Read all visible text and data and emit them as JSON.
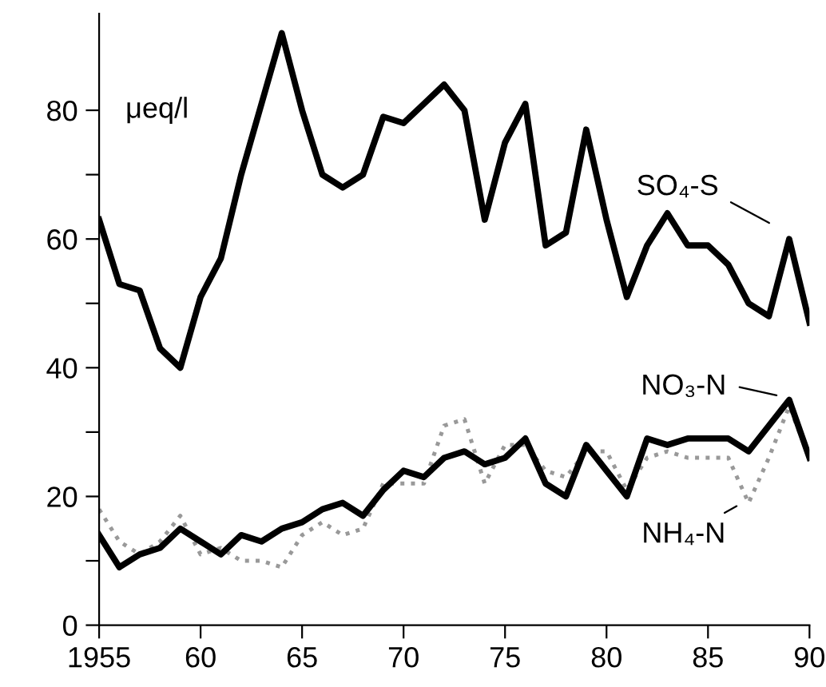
{
  "chart_data": {
    "type": "line",
    "ylabel": "μeq/l",
    "x": [
      1955,
      1956,
      1957,
      1958,
      1959,
      1960,
      1961,
      1962,
      1963,
      1964,
      1965,
      1966,
      1967,
      1968,
      1969,
      1970,
      1971,
      1972,
      1973,
      1974,
      1975,
      1976,
      1977,
      1978,
      1979,
      1980,
      1981,
      1982,
      1983,
      1984,
      1985,
      1986,
      1987,
      1988,
      1989,
      1990
    ],
    "series": [
      {
        "name": "SO₄-S",
        "color": "#000000",
        "line_style": "solid",
        "values": [
          63,
          53,
          52,
          43,
          40,
          51,
          57,
          70,
          81,
          92,
          80,
          70,
          68,
          70,
          79,
          78,
          81,
          84,
          80,
          63,
          75,
          81,
          59,
          61,
          77,
          63,
          51,
          59,
          64,
          59,
          59,
          56,
          50,
          48,
          60,
          47
        ]
      },
      {
        "name": "NO₃-N",
        "color": "#000000",
        "line_style": "solid",
        "values": [
          14,
          9,
          11,
          12,
          15,
          13,
          11,
          14,
          13,
          15,
          16,
          18,
          19,
          17,
          21,
          24,
          23,
          26,
          27,
          25,
          26,
          29,
          22,
          20,
          28,
          24,
          20,
          29,
          28,
          29,
          29,
          29,
          27,
          31,
          35,
          26
        ]
      },
      {
        "name": "NH₄-N",
        "color": "#999999",
        "line_style": "dotted",
        "values": [
          18,
          13,
          11,
          13,
          17,
          11,
          12,
          10,
          10,
          9,
          14,
          16,
          14,
          15,
          22,
          22,
          22,
          31,
          32,
          22,
          28,
          28,
          24,
          23,
          27,
          27,
          21,
          26,
          27,
          26,
          26,
          26,
          19,
          26,
          34,
          26
        ]
      }
    ],
    "xlim": [
      1955,
      1990
    ],
    "ylim": [
      0,
      95
    ],
    "xticks": [
      1955,
      {
        "value": 1960,
        "label": "60"
      },
      {
        "value": 1965,
        "label": "65"
      },
      {
        "value": 1970,
        "label": "70"
      },
      {
        "value": 1975,
        "label": "75"
      },
      {
        "value": 1980,
        "label": "80"
      },
      {
        "value": 1985,
        "label": "85"
      },
      {
        "value": 1990,
        "label": "90"
      }
    ],
    "yticks": [
      0,
      {
        "value": 10,
        "label": null
      },
      20,
      {
        "value": 30,
        "label": null
      },
      40,
      {
        "value": 50,
        "label": null
      },
      60,
      {
        "value": 70,
        "label": null
      },
      80
    ],
    "grid": false,
    "marker": "none"
  }
}
